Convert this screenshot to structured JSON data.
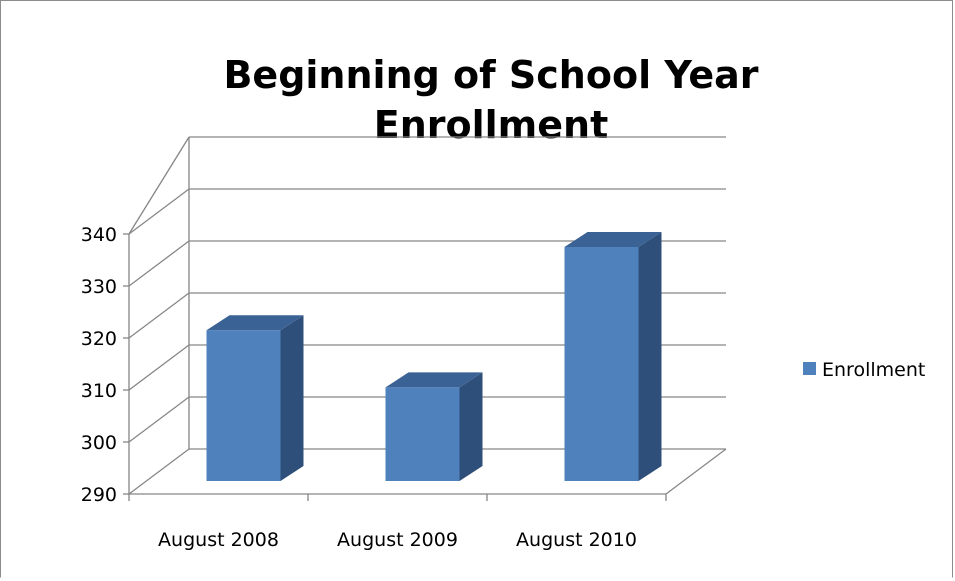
{
  "chart_data": {
    "type": "bar",
    "style": "3d-column",
    "title_lines": [
      "Beginning of School Year",
      "Enrollment"
    ],
    "categories": [
      "August 2008",
      "August 2009",
      "August 2010"
    ],
    "series": [
      {
        "name": "Enrollment",
        "values": [
          319,
          308,
          335
        ],
        "color": "#4f81bd"
      }
    ],
    "ylim": [
      290,
      340
    ],
    "yticks": [
      290,
      300,
      310,
      320,
      330,
      340
    ],
    "grid": true,
    "legend_position": "right"
  },
  "colors": {
    "bar_front": "#4f81bd",
    "bar_side": "#2f4f7b",
    "bar_top": "#3b6294",
    "grid": "#868686",
    "axis": "#868686"
  }
}
